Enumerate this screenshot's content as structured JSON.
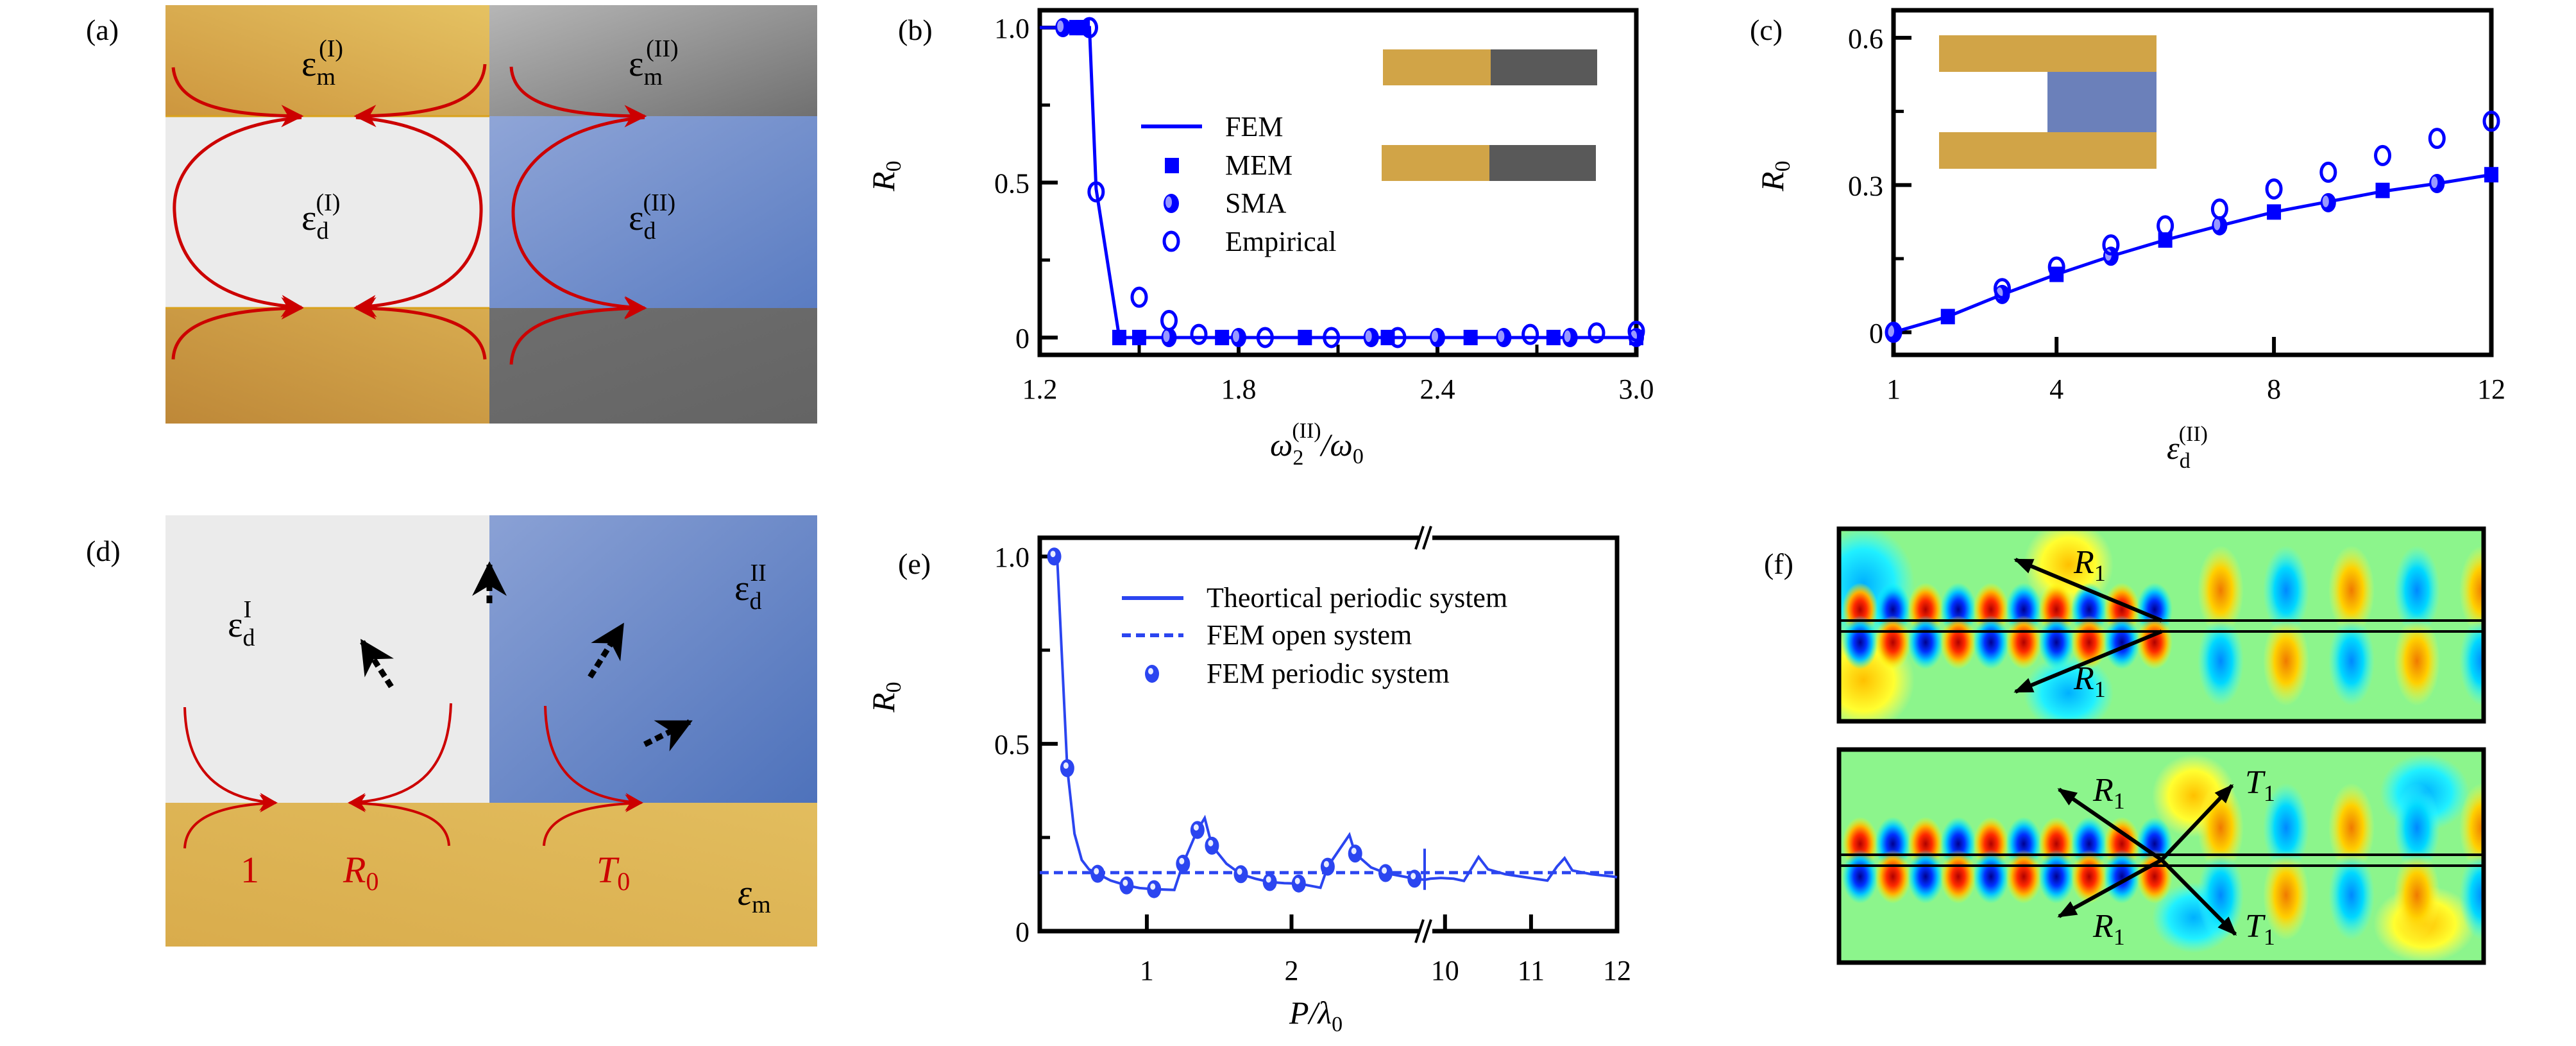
{
  "figure": {
    "panel_labels": {
      "a": "(a)",
      "b": "(b)",
      "c": "(c)",
      "d": "(d)",
      "e": "(e)",
      "f": "(f)"
    },
    "colors": {
      "gold": "#D1A447",
      "gold_light": "#E2BE5E",
      "gold_dark": "#C28B3B",
      "gray_metal": "#595959",
      "gray_light": "#B2B2B2",
      "dielectric_light": "#EBEBEB",
      "dielectric_blue": "#7F99D0",
      "dielectric_blue_dark": "#4F73BC",
      "inset_blue": "#6B80BA",
      "arrow_red": "#CC0000",
      "arrow_black": "#000000",
      "data_blue": "#0000FF",
      "data_blue_e": "#2B45F0"
    }
  },
  "panel_a": {
    "labels": {
      "eps_m_I": {
        "base": "ε",
        "sub": "m",
        "sup": "(I)"
      },
      "eps_m_II": {
        "base": "ε",
        "sub": "m",
        "sup": "(II)"
      },
      "eps_d_I": {
        "base": "ε",
        "sub": "d",
        "sup": "(I)"
      },
      "eps_d_II": {
        "base": "ε",
        "sub": "d",
        "sup": "(II)"
      }
    }
  },
  "panel_d": {
    "labels": {
      "eps_d_I": {
        "base": "ε",
        "sub": "d",
        "sup": "I"
      },
      "eps_d_II": {
        "base": "ε",
        "sub": "d",
        "sup": "II"
      },
      "eps_m": {
        "base": "ε",
        "sub": "m"
      },
      "incident": "1",
      "reflected": {
        "base": "R",
        "sub": "0"
      },
      "transmitted": {
        "base": "T",
        "sub": "0"
      }
    }
  },
  "panel_f": {
    "top_labels": [
      {
        "base": "R",
        "sub": "1"
      },
      {
        "base": "R",
        "sub": "1"
      }
    ],
    "bottom_labels": [
      {
        "base": "R",
        "sub": "1"
      },
      {
        "base": "T",
        "sub": "1"
      },
      {
        "base": "R",
        "sub": "1"
      },
      {
        "base": "T",
        "sub": "1"
      }
    ]
  },
  "chart_data": [
    {
      "id": "b",
      "type": "scatter",
      "title": "",
      "xlabel": {
        "base": "ω",
        "sub": "2",
        "sup": "(II)",
        "tail": "/ω",
        "tail_sub": "0"
      },
      "ylabel": {
        "base": "R",
        "sub": "0"
      },
      "xlim": [
        1.2,
        3.0
      ],
      "ylim": [
        -0.056,
        1.056
      ],
      "xticks": [
        1.2,
        1.8,
        2.4,
        3.0
      ],
      "xtick_labels": [
        "1.2",
        "1.8",
        "2.4",
        "3.0"
      ],
      "xminor": [
        1.5,
        2.1,
        2.7
      ],
      "yticks": [
        0,
        0.5,
        1.0
      ],
      "ytick_labels": [
        "0",
        "0.5",
        "1.0"
      ],
      "yminor": [
        0.25,
        0.75
      ],
      "legend": {
        "placement": "center",
        "entries": [
          "FEM",
          "MEM",
          "SMA",
          "Empirical"
        ]
      },
      "series": [
        {
          "name": "FEM",
          "style": "line",
          "x": [
            1.2,
            1.29,
            1.34,
            1.35,
            1.37,
            1.44,
            1.5,
            1.6,
            1.8,
            2.0,
            2.2,
            2.4,
            2.6,
            2.8,
            3.0
          ],
          "y": [
            1.0,
            1.0,
            1.0,
            1.0,
            0.48,
            0.0,
            0.0,
            0.0,
            0.0,
            0.0,
            0.0,
            0.0,
            0.0,
            0.0,
            0.0
          ]
        },
        {
          "name": "MEM",
          "style": "square",
          "x": [
            1.31,
            1.33,
            1.44,
            1.5,
            1.75,
            2.0,
            2.25,
            2.5,
            2.75,
            3.0
          ],
          "y": [
            1.0,
            1.0,
            0.0,
            0.0,
            0.0,
            0.0,
            0.0,
            0.0,
            0.0,
            0.0
          ]
        },
        {
          "name": "SMA",
          "style": "half",
          "x": [
            1.27,
            1.59,
            1.8,
            2.2,
            2.4,
            2.6,
            2.8,
            3.0
          ],
          "y": [
            1.0,
            0.0,
            0.0,
            0.0,
            0.0,
            0.0,
            0.0,
            0.0
          ]
        },
        {
          "name": "Empirical",
          "style": "open",
          "x": [
            1.35,
            1.37,
            1.5,
            1.59,
            1.68,
            1.88,
            2.08,
            2.28,
            2.68,
            2.88,
            3.0
          ],
          "y": [
            1.0,
            0.47,
            0.13,
            0.055,
            0.01,
            0.0,
            0.0,
            0.0,
            0.01,
            0.015,
            0.02
          ]
        }
      ],
      "insets": [
        {
          "left_color": "#D1A447",
          "right_color": "#595959"
        },
        {
          "left_color": "#D1A447",
          "right_color": "#595959"
        }
      ]
    },
    {
      "id": "c",
      "type": "scatter",
      "title": "",
      "xlabel": {
        "base": "ε",
        "sub": "d",
        "sup": "(II)"
      },
      "ylabel": {
        "base": "R",
        "sub": "0"
      },
      "xlim": [
        1,
        12
      ],
      "ylim": [
        -0.046,
        0.656
      ],
      "xticks": [
        1,
        4,
        8,
        12
      ],
      "xtick_labels": [
        "1",
        "4",
        "8",
        "12"
      ],
      "yticks": [
        0,
        0.3,
        0.6
      ],
      "ytick_labels": [
        "0",
        "0.3",
        "0.6"
      ],
      "yminor": [
        0.15,
        0.45
      ],
      "series": [
        {
          "name": "FEM",
          "style": "line",
          "x": [
            1,
            2,
            3,
            4,
            5,
            6,
            7,
            8,
            9,
            10,
            11,
            12
          ],
          "y": [
            0.0,
            0.032,
            0.077,
            0.118,
            0.155,
            0.188,
            0.217,
            0.245,
            0.266,
            0.287,
            0.303,
            0.321
          ]
        },
        {
          "name": "MEM",
          "style": "square",
          "x": [
            2,
            4,
            6,
            8,
            10,
            12
          ],
          "y": [
            0.032,
            0.118,
            0.188,
            0.245,
            0.289,
            0.321
          ]
        },
        {
          "name": "SMA",
          "style": "half",
          "x": [
            1,
            3,
            5,
            7,
            9,
            11
          ],
          "y": [
            0.0,
            0.077,
            0.155,
            0.217,
            0.264,
            0.303
          ]
        },
        {
          "name": "Empirical",
          "style": "open",
          "x": [
            1,
            3,
            4,
            5,
            6,
            7,
            8,
            9,
            10,
            11,
            12
          ],
          "y": [
            0.0,
            0.089,
            0.133,
            0.178,
            0.217,
            0.251,
            0.292,
            0.326,
            0.36,
            0.395,
            0.43
          ]
        }
      ],
      "inset": {
        "metal_color": "#D1A447",
        "dielectric_color": "#6B80BA"
      }
    },
    {
      "id": "e",
      "type": "line",
      "title": "",
      "xlabel": {
        "base": "P",
        "tail": "/λ",
        "tail_sub": "0"
      },
      "ylabel": {
        "base": "R",
        "sub": "0"
      },
      "x_broken_axis": true,
      "x_segments": [
        [
          0.26,
          2.92
        ],
        [
          9.83,
          12
        ]
      ],
      "ylim": [
        0,
        1.05
      ],
      "xticks": [
        1,
        2,
        10,
        11,
        12
      ],
      "xtick_labels": [
        "1",
        "2",
        "10",
        "11",
        "12"
      ],
      "yticks": [
        0,
        0.5,
        1.0
      ],
      "ytick_labels": [
        "0",
        "0.5",
        "1.0"
      ],
      "yminor": [
        0.25,
        0.75
      ],
      "legend": {
        "placement": "top-right",
        "entries": [
          "Theortical periodic system",
          "FEM open system",
          "FEM periodic system"
        ]
      },
      "series": [
        {
          "name": "Theortical periodic system",
          "style": "line",
          "x": [
            0.36,
            0.38,
            0.45,
            0.5,
            0.55,
            0.6,
            0.66,
            0.75,
            0.86,
            0.95,
            1.05,
            1.19,
            1.25,
            1.35,
            1.4,
            1.45,
            1.55,
            1.65,
            1.75,
            1.85,
            1.95,
            2.05,
            2.2,
            2.25,
            2.4,
            2.44,
            2.55,
            2.65,
            2.85,
            2.92,
            9.83,
            9.95,
            10.1,
            10.22,
            10.39,
            10.5,
            10.7,
            10.9,
            11.19,
            11.3,
            11.39,
            11.48,
            11.7,
            11.94,
            12.0
          ],
          "y": [
            1.0,
            1.0,
            0.435,
            0.26,
            0.19,
            0.165,
            0.153,
            0.135,
            0.122,
            0.115,
            0.112,
            0.11,
            0.18,
            0.27,
            0.302,
            0.228,
            0.18,
            0.152,
            0.14,
            0.131,
            0.128,
            0.127,
            0.116,
            0.172,
            0.257,
            0.207,
            0.17,
            0.155,
            0.14,
            0.137,
            0.14,
            0.142,
            0.14,
            0.134,
            0.198,
            0.165,
            0.152,
            0.145,
            0.135,
            0.172,
            0.195,
            0.162,
            0.152,
            0.146,
            0.144
          ]
        },
        {
          "name": "FEM open system",
          "style": "dashed",
          "y_const": 0.156
        },
        {
          "name": "FEM periodic system",
          "style": "ball",
          "x": [
            0.36,
            0.45,
            0.66,
            0.86,
            1.05,
            1.25,
            1.35,
            1.45,
            1.65,
            1.85,
            2.05,
            2.25,
            2.44,
            2.65,
            2.85
          ],
          "y": [
            1.0,
            0.435,
            0.153,
            0.122,
            0.112,
            0.18,
            0.27,
            0.228,
            0.152,
            0.131,
            0.127,
            0.172,
            0.207,
            0.155,
            0.14
          ]
        }
      ]
    }
  ]
}
